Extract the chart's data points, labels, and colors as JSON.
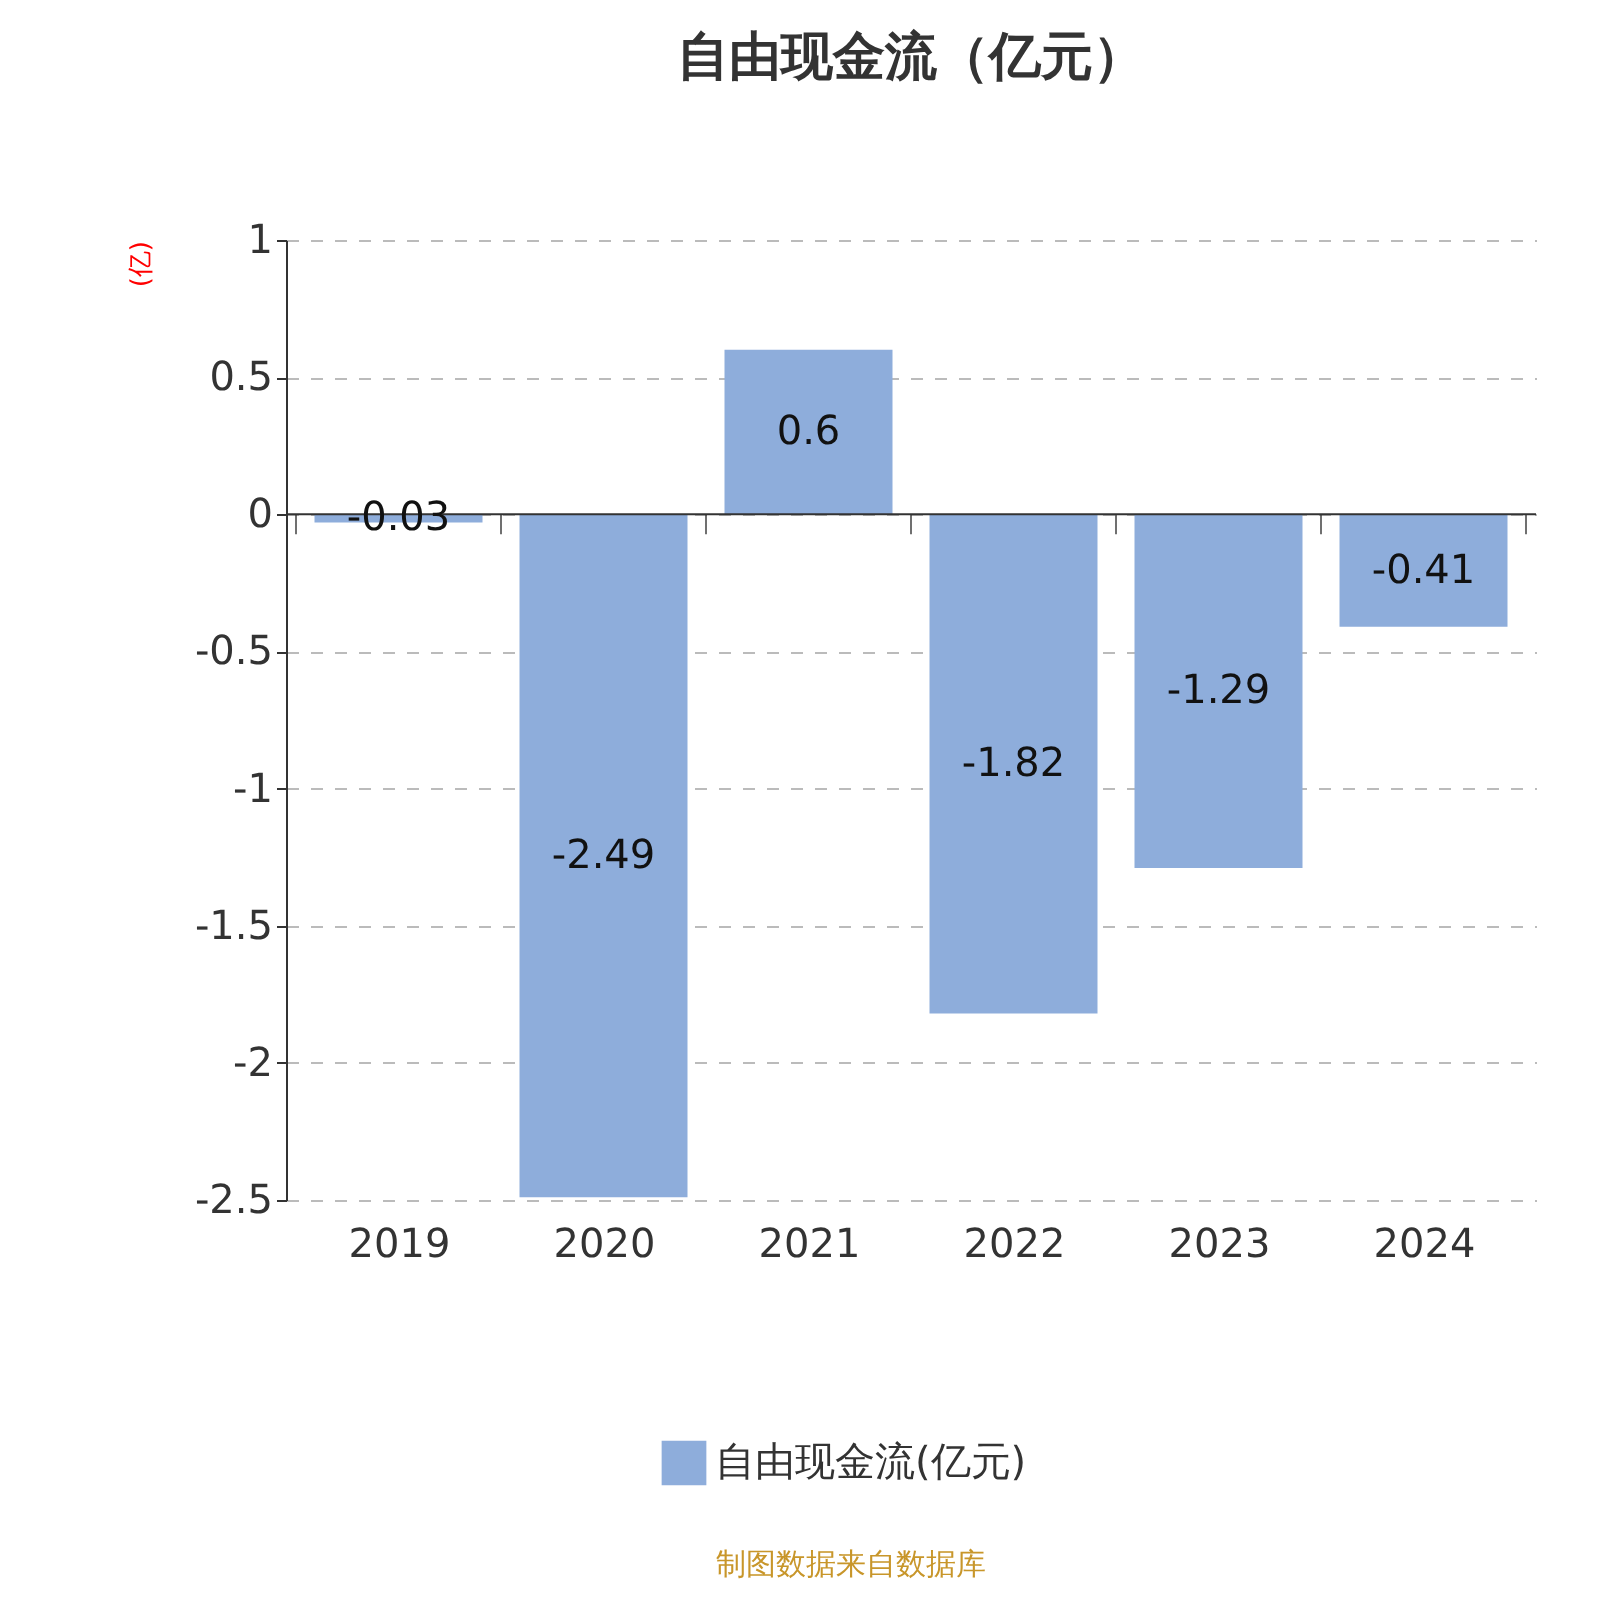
{
  "chart_data": {
    "type": "bar",
    "title": "自由现金流（亿元）",
    "ylabel": "(亿)",
    "categories": [
      "2019",
      "2020",
      "2021",
      "2022",
      "2023",
      "2024"
    ],
    "series": [
      {
        "name": "自由现金流(亿元)",
        "color": "#8eaddb",
        "values": [
          -0.03,
          -2.49,
          0.6,
          -1.82,
          -1.29,
          -0.41
        ]
      }
    ],
    "ylim": [
      -2.5,
      1
    ],
    "yticks": [
      -2.5,
      -2,
      -1.5,
      -1,
      -0.5,
      0,
      0.5,
      1
    ],
    "grid": "y",
    "data_labels": true,
    "legend": "bottom",
    "annotations": [
      "制图数据来自数据库"
    ]
  }
}
